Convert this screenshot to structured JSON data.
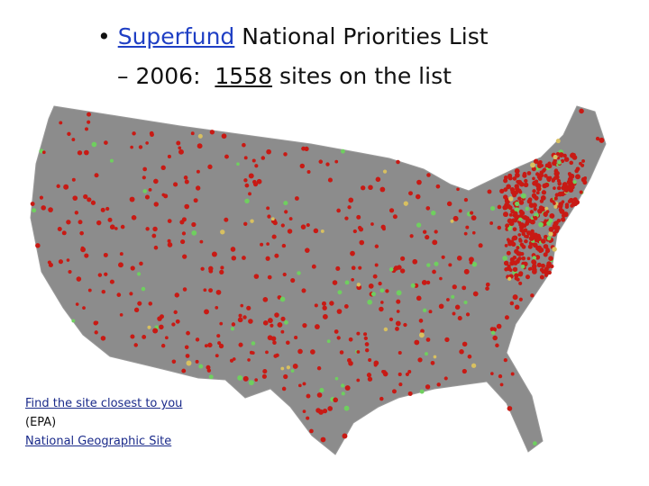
{
  "slide": {
    "bullet": {
      "link": "Superfund",
      "text": "National Priorities List"
    },
    "sub_bullet": {
      "prefix": "– 2006:",
      "count": 1558,
      "suffix": "sites on the list"
    },
    "links": [
      "Find the site closest to you",
      "(EPA)",
      "National Geographic Site"
    ]
  }
}
